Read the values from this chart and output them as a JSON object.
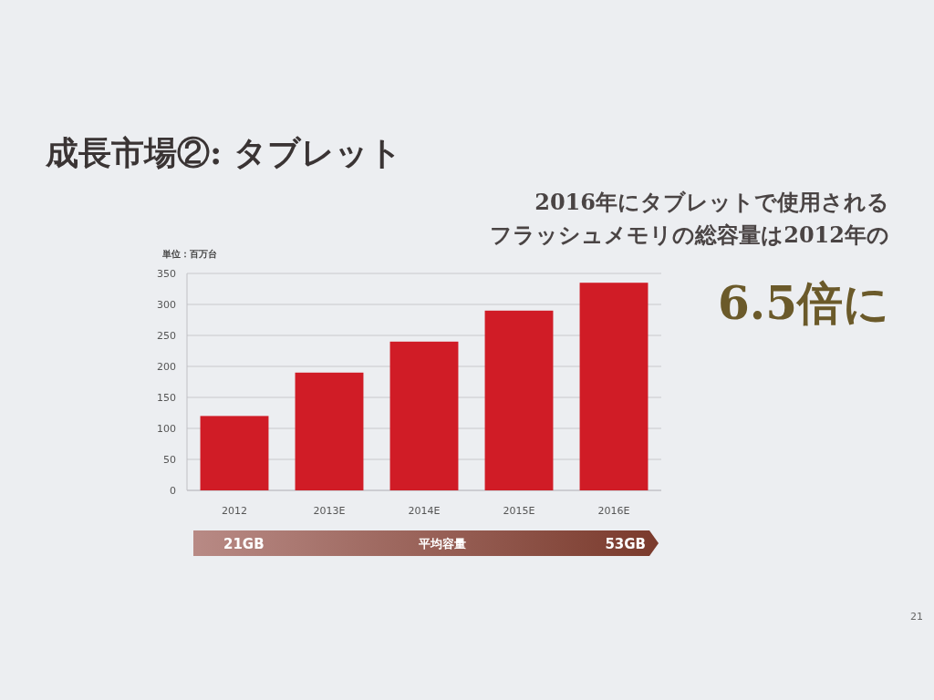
{
  "chart_data": {
    "type": "bar",
    "title": "成長市場②: タブレット",
    "ylabel": "単位：百万台",
    "categories": [
      "2012",
      "2013E",
      "2014E",
      "2015E",
      "2016E"
    ],
    "values": [
      120,
      190,
      240,
      290,
      335
    ],
    "color": "#d01c26",
    "ylim": [
      0,
      350
    ],
    "yticks": [
      0,
      50,
      100,
      150,
      200,
      250,
      300,
      350
    ],
    "grid": "y",
    "annotations": [
      "2016年にタブレットで使用される",
      "フラッシュメモリの総容量は2012年の",
      "6.5倍に",
      "21GB",
      "平均容量",
      "53GB",
      "21"
    ]
  }
}
